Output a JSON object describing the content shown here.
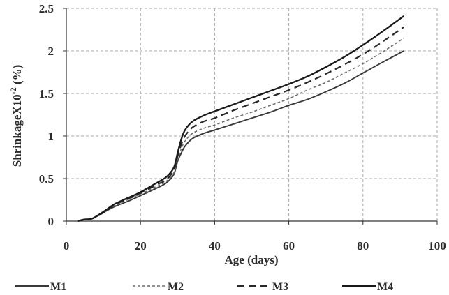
{
  "chart_data": {
    "type": "line",
    "title": "",
    "xlabel": "Age (days)",
    "ylabel": "ShrinkageX10",
    "ylabel_superscript": "-2",
    "ylabel_unit": " (%)",
    "xlim": [
      0,
      100
    ],
    "ylim": [
      0,
      2.5
    ],
    "x_ticks": [
      "0",
      "20",
      "40",
      "60",
      "80",
      "100"
    ],
    "y_ticks": [
      "0",
      "0.5",
      "1",
      "1.5",
      "2",
      "2.5"
    ],
    "grid": true,
    "legend_position": "bottom",
    "series": [
      {
        "name": "M1",
        "style": "solid",
        "color": "#3a3a3a",
        "x": [
          3,
          5,
          7,
          10,
          13,
          17,
          20,
          24,
          27,
          29,
          30,
          31,
          32,
          34,
          37,
          40,
          45,
          50,
          55,
          60,
          65,
          70,
          75,
          80,
          85,
          91
        ],
        "y": [
          0.0,
          0.02,
          0.03,
          0.1,
          0.17,
          0.24,
          0.3,
          0.38,
          0.45,
          0.55,
          0.7,
          0.8,
          0.88,
          0.97,
          1.03,
          1.07,
          1.14,
          1.21,
          1.28,
          1.36,
          1.43,
          1.52,
          1.62,
          1.74,
          1.86,
          2.0
        ]
      },
      {
        "name": "M2",
        "style": "short-dash",
        "color": "#6e6e6e",
        "x": [
          3,
          5,
          7,
          10,
          13,
          17,
          20,
          24,
          27,
          29,
          30,
          31,
          32,
          34,
          37,
          40,
          45,
          50,
          55,
          60,
          65,
          70,
          75,
          80,
          85,
          91
        ],
        "y": [
          0.0,
          0.02,
          0.03,
          0.1,
          0.18,
          0.26,
          0.32,
          0.4,
          0.47,
          0.57,
          0.72,
          0.85,
          0.94,
          1.03,
          1.09,
          1.13,
          1.21,
          1.28,
          1.36,
          1.44,
          1.54,
          1.63,
          1.74,
          1.85,
          1.98,
          2.15
        ]
      },
      {
        "name": "M3",
        "style": "long-dash",
        "color": "#2a2a2a",
        "x": [
          3,
          5,
          7,
          10,
          13,
          17,
          20,
          24,
          27,
          29,
          30,
          31,
          32,
          34,
          37,
          40,
          45,
          50,
          55,
          60,
          65,
          70,
          75,
          80,
          85,
          91
        ],
        "y": [
          0.0,
          0.02,
          0.03,
          0.1,
          0.19,
          0.27,
          0.33,
          0.42,
          0.49,
          0.6,
          0.76,
          0.9,
          1.0,
          1.1,
          1.17,
          1.21,
          1.3,
          1.38,
          1.46,
          1.54,
          1.63,
          1.73,
          1.84,
          1.96,
          2.1,
          2.28
        ]
      },
      {
        "name": "M4",
        "style": "solid",
        "color": "#1a1a1a",
        "x": [
          3,
          5,
          7,
          10,
          13,
          17,
          20,
          24,
          27,
          29,
          30,
          31,
          32,
          34,
          37,
          40,
          45,
          50,
          55,
          60,
          65,
          70,
          75,
          80,
          85,
          91
        ],
        "y": [
          0.0,
          0.02,
          0.03,
          0.11,
          0.2,
          0.28,
          0.34,
          0.44,
          0.52,
          0.63,
          0.8,
          0.96,
          1.07,
          1.17,
          1.24,
          1.29,
          1.37,
          1.45,
          1.53,
          1.61,
          1.7,
          1.81,
          1.93,
          2.07,
          2.22,
          2.41
        ]
      }
    ]
  }
}
